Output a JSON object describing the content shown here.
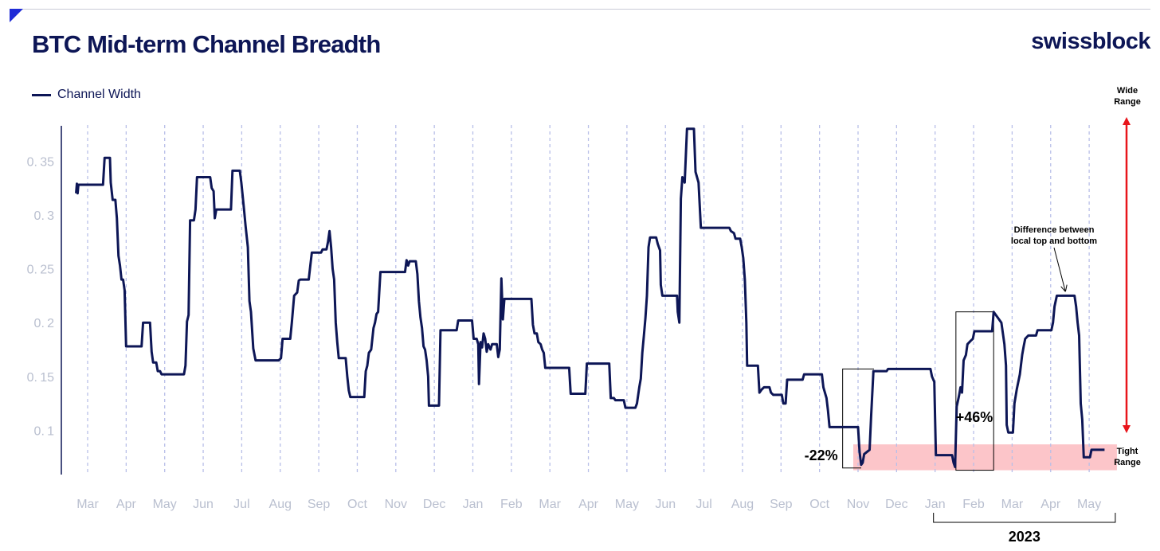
{
  "header": {
    "title": "BTC Mid-term Channel Breadth",
    "brand": "swissblock"
  },
  "colors": {
    "line": "#0d1656",
    "grid": "#b8bfe8",
    "tight_band": "#fcc5c9",
    "arrow": "#e8151b",
    "tick": "#b9bfcf"
  },
  "chart_data": {
    "type": "line",
    "title": "BTC Mid-term Channel Breadth",
    "legend": {
      "position": "top-left"
    },
    "grid": {
      "x": true,
      "y": false,
      "x_style": "dashed"
    },
    "ylim": [
      0.06,
      0.38
    ],
    "yticks": [
      0.1,
      0.15,
      0.2,
      0.25,
      0.3,
      0.35
    ],
    "xlim": [
      0,
      27.7
    ],
    "xticks": [
      {
        "x": 0,
        "label": "Mar"
      },
      {
        "x": 1,
        "label": "Apr"
      },
      {
        "x": 2,
        "label": "May"
      },
      {
        "x": 3,
        "label": "Jun"
      },
      {
        "x": 4,
        "label": "Jul"
      },
      {
        "x": 5,
        "label": "Aug"
      },
      {
        "x": 6,
        "label": "Sep"
      },
      {
        "x": 7,
        "label": "Oct"
      },
      {
        "x": 8,
        "label": "Nov"
      },
      {
        "x": 9,
        "label": "Dec"
      },
      {
        "x": 10,
        "label": "Jan"
      },
      {
        "x": 11,
        "label": "Feb"
      },
      {
        "x": 12,
        "label": "Mar"
      },
      {
        "x": 13,
        "label": "Apr"
      },
      {
        "x": 14,
        "label": "May"
      },
      {
        "x": 15,
        "label": "Jun"
      },
      {
        "x": 16,
        "label": "Jul"
      },
      {
        "x": 17,
        "label": "Aug"
      },
      {
        "x": 18,
        "label": "Sep"
      },
      {
        "x": 19,
        "label": "Oct"
      },
      {
        "x": 20,
        "label": "Nov"
      },
      {
        "x": 21,
        "label": "Dec"
      },
      {
        "x": 22,
        "label": "Jan"
      },
      {
        "x": 23,
        "label": "Feb"
      },
      {
        "x": 24,
        "label": "Mar"
      },
      {
        "x": 25,
        "label": "Apr"
      },
      {
        "x": 26,
        "label": "May"
      }
    ],
    "series": [
      {
        "name": "Channel Width",
        "points": [
          [
            -0.3,
            0.32
          ],
          [
            -0.28,
            0.329
          ],
          [
            -0.26,
            0.32
          ],
          [
            -0.24,
            0.328
          ],
          [
            0.4,
            0.328
          ],
          [
            0.44,
            0.353
          ],
          [
            0.58,
            0.353
          ],
          [
            0.6,
            0.33
          ],
          [
            0.65,
            0.314
          ],
          [
            0.72,
            0.314
          ],
          [
            0.76,
            0.297
          ],
          [
            0.8,
            0.262
          ],
          [
            0.84,
            0.253
          ],
          [
            0.88,
            0.24
          ],
          [
            0.92,
            0.24
          ],
          [
            0.96,
            0.23
          ],
          [
            1.0,
            0.178
          ],
          [
            1.4,
            0.178
          ],
          [
            1.44,
            0.2
          ],
          [
            1.62,
            0.2
          ],
          [
            1.66,
            0.173
          ],
          [
            1.7,
            0.163
          ],
          [
            1.78,
            0.163
          ],
          [
            1.82,
            0.155
          ],
          [
            1.88,
            0.155
          ],
          [
            1.92,
            0.152
          ],
          [
            2.5,
            0.152
          ],
          [
            2.54,
            0.16
          ],
          [
            2.58,
            0.201
          ],
          [
            2.62,
            0.207
          ],
          [
            2.66,
            0.295
          ],
          [
            2.76,
            0.295
          ],
          [
            2.8,
            0.305
          ],
          [
            2.84,
            0.335
          ],
          [
            3.18,
            0.335
          ],
          [
            3.22,
            0.325
          ],
          [
            3.27,
            0.322
          ],
          [
            3.3,
            0.297
          ],
          [
            3.34,
            0.305
          ],
          [
            3.72,
            0.305
          ],
          [
            3.76,
            0.341
          ],
          [
            3.95,
            0.341
          ],
          [
            3.99,
            0.33
          ],
          [
            4.06,
            0.305
          ],
          [
            4.1,
            0.29
          ],
          [
            4.16,
            0.27
          ],
          [
            4.2,
            0.22
          ],
          [
            4.24,
            0.21
          ],
          [
            4.3,
            0.176
          ],
          [
            4.36,
            0.165
          ],
          [
            4.96,
            0.165
          ],
          [
            5.02,
            0.167
          ],
          [
            5.06,
            0.185
          ],
          [
            5.26,
            0.185
          ],
          [
            5.3,
            0.2
          ],
          [
            5.36,
            0.225
          ],
          [
            5.44,
            0.228
          ],
          [
            5.48,
            0.239
          ],
          [
            5.52,
            0.24
          ],
          [
            5.74,
            0.24
          ],
          [
            5.78,
            0.253
          ],
          [
            5.82,
            0.265
          ],
          [
            6.06,
            0.265
          ],
          [
            6.1,
            0.268
          ],
          [
            6.2,
            0.268
          ],
          [
            6.24,
            0.275
          ],
          [
            6.28,
            0.285
          ],
          [
            6.32,
            0.27
          ],
          [
            6.36,
            0.25
          ],
          [
            6.4,
            0.24
          ],
          [
            6.44,
            0.2
          ],
          [
            6.48,
            0.182
          ],
          [
            6.52,
            0.167
          ],
          [
            6.7,
            0.167
          ],
          [
            6.74,
            0.15
          ],
          [
            6.78,
            0.137
          ],
          [
            6.82,
            0.131
          ],
          [
            7.18,
            0.131
          ],
          [
            7.22,
            0.155
          ],
          [
            7.26,
            0.16
          ],
          [
            7.3,
            0.172
          ],
          [
            7.36,
            0.175
          ],
          [
            7.42,
            0.195
          ],
          [
            7.46,
            0.2
          ],
          [
            7.5,
            0.208
          ],
          [
            7.54,
            0.21
          ],
          [
            7.6,
            0.247
          ],
          [
            8.24,
            0.247
          ],
          [
            8.28,
            0.258
          ],
          [
            8.32,
            0.253
          ],
          [
            8.36,
            0.257
          ],
          [
            8.52,
            0.257
          ],
          [
            8.56,
            0.245
          ],
          [
            8.6,
            0.22
          ],
          [
            8.64,
            0.205
          ],
          [
            8.68,
            0.195
          ],
          [
            8.72,
            0.178
          ],
          [
            8.76,
            0.175
          ],
          [
            8.8,
            0.165
          ],
          [
            8.84,
            0.15
          ],
          [
            8.86,
            0.123
          ],
          [
            9.12,
            0.123
          ],
          [
            9.16,
            0.193
          ],
          [
            9.58,
            0.193
          ],
          [
            9.62,
            0.202
          ],
          [
            9.98,
            0.202
          ],
          [
            10.02,
            0.185
          ],
          [
            10.1,
            0.185
          ],
          [
            10.14,
            0.18
          ],
          [
            10.16,
            0.143
          ],
          [
            10.2,
            0.182
          ],
          [
            10.24,
            0.177
          ],
          [
            10.28,
            0.19
          ],
          [
            10.32,
            0.185
          ],
          [
            10.36,
            0.173
          ],
          [
            10.4,
            0.18
          ],
          [
            10.46,
            0.175
          ],
          [
            10.5,
            0.18
          ],
          [
            10.62,
            0.18
          ],
          [
            10.66,
            0.168
          ],
          [
            10.7,
            0.175
          ],
          [
            10.74,
            0.241
          ],
          [
            10.78,
            0.203
          ],
          [
            10.82,
            0.222
          ],
          [
            10.86,
            0.222
          ],
          [
            10.9,
            0.222
          ],
          [
            11.52,
            0.222
          ],
          [
            11.56,
            0.198
          ],
          [
            11.6,
            0.19
          ],
          [
            11.66,
            0.19
          ],
          [
            11.7,
            0.182
          ],
          [
            11.76,
            0.18
          ],
          [
            11.8,
            0.175
          ],
          [
            11.84,
            0.172
          ],
          [
            11.88,
            0.158
          ],
          [
            12.5,
            0.158
          ],
          [
            12.54,
            0.134
          ],
          [
            12.92,
            0.134
          ],
          [
            12.96,
            0.162
          ],
          [
            13.54,
            0.162
          ],
          [
            13.58,
            0.13
          ],
          [
            13.66,
            0.13
          ],
          [
            13.7,
            0.128
          ],
          [
            13.92,
            0.128
          ],
          [
            13.96,
            0.121
          ],
          [
            14.22,
            0.121
          ],
          [
            14.26,
            0.125
          ],
          [
            14.32,
            0.14
          ],
          [
            14.36,
            0.148
          ],
          [
            14.4,
            0.172
          ],
          [
            14.44,
            0.188
          ],
          [
            14.48,
            0.204
          ],
          [
            14.52,
            0.225
          ],
          [
            14.56,
            0.27
          ],
          [
            14.6,
            0.279
          ],
          [
            14.76,
            0.279
          ],
          [
            14.8,
            0.273
          ],
          [
            14.86,
            0.267
          ],
          [
            14.88,
            0.235
          ],
          [
            14.92,
            0.225
          ],
          [
            15.3,
            0.225
          ],
          [
            15.32,
            0.21
          ],
          [
            15.36,
            0.2
          ],
          [
            15.4,
            0.315
          ],
          [
            15.44,
            0.335
          ],
          [
            15.5,
            0.33
          ],
          [
            15.56,
            0.38
          ],
          [
            15.74,
            0.38
          ],
          [
            15.78,
            0.34
          ],
          [
            15.86,
            0.33
          ],
          [
            15.92,
            0.288
          ],
          [
            16.66,
            0.288
          ],
          [
            16.7,
            0.285
          ],
          [
            16.78,
            0.283
          ],
          [
            16.82,
            0.278
          ],
          [
            16.94,
            0.278
          ],
          [
            16.98,
            0.27
          ],
          [
            17.02,
            0.26
          ],
          [
            17.06,
            0.24
          ],
          [
            17.1,
            0.2
          ],
          [
            17.12,
            0.16
          ],
          [
            17.4,
            0.16
          ],
          [
            17.44,
            0.135
          ],
          [
            17.5,
            0.138
          ],
          [
            17.56,
            0.14
          ],
          [
            17.7,
            0.14
          ],
          [
            17.74,
            0.135
          ],
          [
            17.8,
            0.133
          ],
          [
            18.02,
            0.133
          ],
          [
            18.06,
            0.125
          ],
          [
            18.12,
            0.125
          ],
          [
            18.16,
            0.147
          ],
          [
            18.56,
            0.147
          ],
          [
            18.6,
            0.152
          ],
          [
            19.06,
            0.152
          ],
          [
            19.1,
            0.14
          ],
          [
            19.18,
            0.13
          ],
          [
            19.22,
            0.118
          ],
          [
            19.26,
            0.103
          ],
          [
            20.0,
            0.103
          ],
          [
            20.04,
            0.08
          ],
          [
            20.08,
            0.068
          ],
          [
            20.12,
            0.07
          ],
          [
            20.16,
            0.078
          ],
          [
            20.3,
            0.082
          ],
          [
            20.34,
            0.113
          ],
          [
            20.4,
            0.155
          ],
          [
            20.74,
            0.155
          ],
          [
            20.78,
            0.157
          ],
          [
            21.88,
            0.157
          ],
          [
            21.92,
            0.15
          ],
          [
            21.98,
            0.145
          ],
          [
            22.02,
            0.077
          ],
          [
            22.44,
            0.077
          ],
          [
            22.48,
            0.07
          ],
          [
            22.52,
            0.066
          ],
          [
            22.56,
            0.122
          ],
          [
            22.62,
            0.132
          ],
          [
            22.66,
            0.14
          ],
          [
            22.7,
            0.135
          ],
          [
            22.74,
            0.165
          ],
          [
            22.8,
            0.17
          ],
          [
            22.84,
            0.18
          ],
          [
            22.92,
            0.183
          ],
          [
            22.98,
            0.185
          ],
          [
            23.02,
            0.192
          ],
          [
            23.48,
            0.192
          ],
          [
            23.52,
            0.21
          ],
          [
            23.62,
            0.205
          ],
          [
            23.72,
            0.2
          ],
          [
            23.76,
            0.19
          ],
          [
            23.8,
            0.18
          ],
          [
            23.84,
            0.16
          ],
          [
            23.86,
            0.105
          ],
          [
            23.9,
            0.098
          ],
          [
            24.02,
            0.098
          ],
          [
            24.06,
            0.125
          ],
          [
            24.12,
            0.138
          ],
          [
            24.2,
            0.152
          ],
          [
            24.26,
            0.17
          ],
          [
            24.3,
            0.178
          ],
          [
            24.34,
            0.185
          ],
          [
            24.42,
            0.188
          ],
          [
            24.62,
            0.188
          ],
          [
            24.66,
            0.193
          ],
          [
            25.02,
            0.193
          ],
          [
            25.06,
            0.2
          ],
          [
            25.1,
            0.215
          ],
          [
            25.16,
            0.225
          ],
          [
            25.62,
            0.225
          ],
          [
            25.66,
            0.215
          ],
          [
            25.7,
            0.2
          ],
          [
            25.74,
            0.188
          ],
          [
            25.78,
            0.125
          ],
          [
            25.82,
            0.11
          ],
          [
            25.86,
            0.075
          ],
          [
            26.02,
            0.075
          ],
          [
            26.06,
            0.082
          ],
          [
            26.4,
            0.082
          ]
        ]
      }
    ],
    "annotations": {
      "tight_band": {
        "y0": 0.063,
        "y1": 0.087,
        "x0": 20.0,
        "x1": 26.72
      },
      "drop": {
        "label": "-22%",
        "x0": 19.6,
        "x1": 20.0,
        "y_top": 0.157,
        "y_bottom": 0.068
      },
      "rise": {
        "label": "+46%",
        "x0": 22.52,
        "x1": 23.52,
        "y_top": 0.21,
        "y_bottom": 0.063
      },
      "difference": {
        "label_line1": "Difference between",
        "label_line2": "local top and bottom",
        "arrow_to_x": 25.4,
        "arrow_to_y": 0.228
      },
      "range_wide_line1": "Wide",
      "range_wide_line2": "Range",
      "range_tight_line1": "Tight",
      "range_tight_line2": "Range",
      "year_label": "2023",
      "year_span": [
        22.0,
        26.72
      ]
    }
  }
}
